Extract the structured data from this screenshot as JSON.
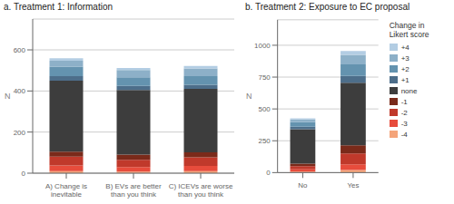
{
  "chart_data": [
    {
      "type": "bar",
      "stacked": true,
      "grid": true,
      "title": "a. Treatment 1: Information",
      "y_label": "N",
      "categories": [
        "A) Change is\ninevitable",
        "B) EVs are better\nthan you think",
        "C) ICEVs are worse\nthan you think"
      ],
      "series": [
        {
          "name": "-4",
          "color": "#f4a47a",
          "values": [
            10,
            8,
            10
          ]
        },
        {
          "name": "-3",
          "color": "#e74c3c",
          "values": [
            28,
            22,
            25
          ]
        },
        {
          "name": "-2",
          "color": "#c0392b",
          "values": [
            42,
            35,
            42
          ]
        },
        {
          "name": "-1",
          "color": "#7a2a1a",
          "values": [
            25,
            25,
            25
          ]
        },
        {
          "name": "none",
          "color": "#3d3d3d",
          "values": [
            345,
            315,
            308
          ]
        },
        {
          "name": "+1",
          "color": "#4d6e8a",
          "values": [
            22,
            20,
            20
          ]
        },
        {
          "name": "+2",
          "color": "#6493af",
          "values": [
            45,
            42,
            42
          ]
        },
        {
          "name": "+3",
          "color": "#8db0c8",
          "values": [
            30,
            35,
            38
          ]
        },
        {
          "name": "+4",
          "color": "#b3cde3",
          "values": [
            12,
            10,
            12
          ]
        }
      ],
      "ylim": [
        0,
        750
      ],
      "yticks": [
        0,
        200,
        400,
        600
      ]
    },
    {
      "type": "bar",
      "stacked": true,
      "grid": true,
      "legend": "right",
      "title": "b. Treatment 2: Exposure to EC proposal",
      "y_label": "N",
      "legend_title": "Change in\nLikert score",
      "categories": [
        "No",
        "Yes"
      ],
      "series": [
        {
          "name": "-4",
          "color": "#f4a47a",
          "values": [
            8,
            20
          ]
        },
        {
          "name": "-3",
          "color": "#e74c3c",
          "values": [
            18,
            45
          ]
        },
        {
          "name": "-2",
          "color": "#c0392b",
          "values": [
            25,
            85
          ]
        },
        {
          "name": "-1",
          "color": "#7a2a1a",
          "values": [
            20,
            65
          ]
        },
        {
          "name": "none",
          "color": "#3d3d3d",
          "values": [
            270,
            490
          ]
        },
        {
          "name": "+1",
          "color": "#4d6e8a",
          "values": [
            20,
            55
          ]
        },
        {
          "name": "+2",
          "color": "#6493af",
          "values": [
            35,
            90
          ]
        },
        {
          "name": "+3",
          "color": "#8db0c8",
          "values": [
            22,
            75
          ]
        },
        {
          "name": "+4",
          "color": "#b3cde3",
          "values": [
            8,
            30
          ]
        }
      ],
      "ylim": [
        0,
        1200
      ],
      "yticks": [
        0,
        250,
        500,
        750,
        1000
      ]
    }
  ]
}
